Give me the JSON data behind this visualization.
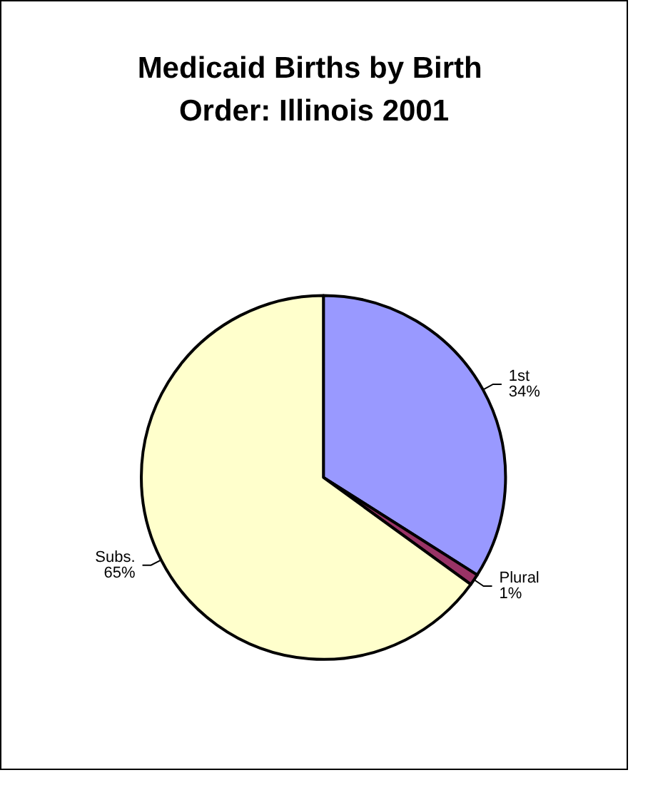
{
  "chart_data": {
    "type": "pie",
    "title": "Medicaid Births by Birth Order: Illinois 2001",
    "categories": [
      "1st",
      "Plural",
      "Subs."
    ],
    "values": [
      34,
      1,
      65
    ],
    "colors": [
      "#9999ff",
      "#993366",
      "#ffffcc"
    ],
    "value_labels": [
      "34%",
      "1%",
      "65%"
    ],
    "legend": false
  }
}
